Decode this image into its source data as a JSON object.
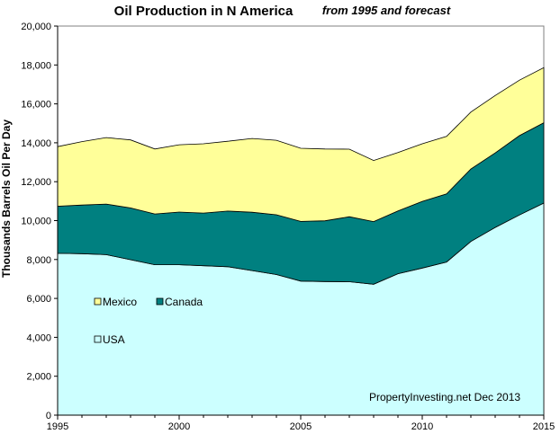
{
  "chart_data": {
    "type": "area",
    "stacked": true,
    "title": "Oil Production  in  N America",
    "subtitle": "from 1995 and forecast",
    "ylabel": "Thousands  Barrels Oil Per Day",
    "xlabel": "",
    "x": [
      1995,
      1996,
      1997,
      1998,
      1999,
      2000,
      2001,
      2002,
      2003,
      2004,
      2005,
      2006,
      2007,
      2008,
      2009,
      2010,
      2011,
      2012,
      2013,
      2014,
      2015
    ],
    "xticks": [
      1995,
      2000,
      2005,
      2010,
      2015
    ],
    "yticks": [
      0,
      2000,
      4000,
      6000,
      8000,
      10000,
      12000,
      14000,
      16000,
      18000,
      20000
    ],
    "ytick_labels": [
      "0",
      "2,000",
      "4,000",
      "6,000",
      "8,000",
      "10,000",
      "12,000",
      "14,000",
      "16,000",
      "18,000",
      "20,000"
    ],
    "xlim": [
      1995,
      2015
    ],
    "ylim": [
      0,
      20000
    ],
    "grid": false,
    "legend_position": "lower-left",
    "series": [
      {
        "name": "USA",
        "color": "#ccffff",
        "values": [
          8320,
          8300,
          8250,
          7990,
          7730,
          7730,
          7680,
          7630,
          7430,
          7230,
          6890,
          6870,
          6860,
          6730,
          7270,
          7560,
          7870,
          8930,
          9650,
          10290,
          10900
        ]
      },
      {
        "name": "Canada",
        "color": "#008080",
        "values": [
          2420,
          2500,
          2600,
          2660,
          2610,
          2710,
          2710,
          2860,
          3000,
          3070,
          3070,
          3120,
          3340,
          3220,
          3230,
          3430,
          3500,
          3720,
          3830,
          4080,
          4130
        ]
      },
      {
        "name": "Mexico",
        "color": "#ffff99",
        "values": [
          3060,
          3260,
          3420,
          3500,
          3340,
          3460,
          3560,
          3590,
          3790,
          3830,
          3760,
          3690,
          3470,
          3140,
          3000,
          2960,
          2960,
          2930,
          2950,
          2850,
          2830
        ]
      }
    ],
    "annotation": "PropertyInvesting.net  Dec 2013"
  }
}
